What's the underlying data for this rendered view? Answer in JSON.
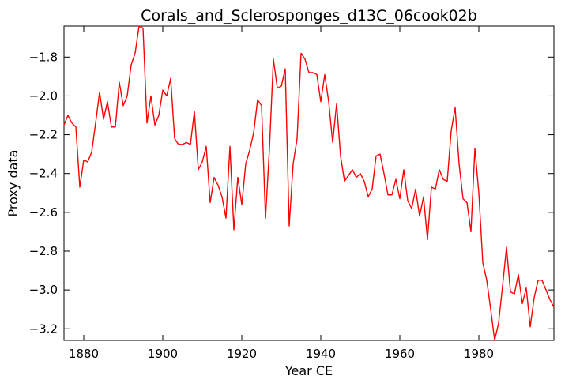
{
  "chart_data": {
    "type": "line",
    "title": "Corals_and_Sclerosponges_d13C_06cook02b",
    "xlabel": "Year CE",
    "ylabel": "Proxy data",
    "xlim": [
      1875,
      1999
    ],
    "ylim": [
      -3.26,
      -1.64
    ],
    "grid": false,
    "x_ticks": [
      {
        "value": 1880,
        "label": "1880"
      },
      {
        "value": 1900,
        "label": "1900"
      },
      {
        "value": 1920,
        "label": "1920"
      },
      {
        "value": 1940,
        "label": "1940"
      },
      {
        "value": 1960,
        "label": "1960"
      },
      {
        "value": 1980,
        "label": "1980"
      }
    ],
    "y_ticks": [
      {
        "value": -1.8,
        "label": "−1.8"
      },
      {
        "value": -2.0,
        "label": "−2.0"
      },
      {
        "value": -2.2,
        "label": "−2.2"
      },
      {
        "value": -2.4,
        "label": "−2.4"
      },
      {
        "value": -2.6,
        "label": "−2.6"
      },
      {
        "value": -2.8,
        "label": "−2.8"
      },
      {
        "value": -3.0,
        "label": "−3.0"
      },
      {
        "value": -3.2,
        "label": "−3.2"
      }
    ],
    "series": [
      {
        "color": "#ff0000",
        "x": [
          1875,
          1876,
          1877,
          1878,
          1879,
          1880,
          1881,
          1882,
          1883,
          1884,
          1885,
          1886,
          1887,
          1888,
          1889,
          1890,
          1891,
          1892,
          1893,
          1894,
          1895,
          1896,
          1897,
          1898,
          1899,
          1900,
          1901,
          1902,
          1903,
          1904,
          1905,
          1906,
          1907,
          1908,
          1909,
          1910,
          1911,
          1912,
          1913,
          1914,
          1915,
          1916,
          1917,
          1918,
          1919,
          1920,
          1921,
          1922,
          1923,
          1924,
          1925,
          1926,
          1927,
          1928,
          1929,
          1930,
          1931,
          1932,
          1933,
          1934,
          1935,
          1936,
          1937,
          1938,
          1939,
          1940,
          1941,
          1942,
          1943,
          1944,
          1945,
          1946,
          1947,
          1948,
          1949,
          1950,
          1951,
          1952,
          1953,
          1954,
          1955,
          1956,
          1957,
          1958,
          1959,
          1960,
          1961,
          1962,
          1963,
          1964,
          1965,
          1966,
          1967,
          1968,
          1969,
          1970,
          1971,
          1972,
          1973,
          1974,
          1975,
          1976,
          1977,
          1978,
          1979,
          1980,
          1981,
          1982,
          1983,
          1984,
          1985,
          1986,
          1987,
          1988,
          1989,
          1990,
          1991,
          1992,
          1993,
          1994,
          1995,
          1996,
          1997,
          1998,
          1999
        ],
        "y": [
          -2.15,
          -2.1,
          -2.14,
          -2.16,
          -2.47,
          -2.33,
          -2.34,
          -2.29,
          -2.14,
          -1.98,
          -2.12,
          -2.03,
          -2.16,
          -2.16,
          -1.93,
          -2.05,
          -2.0,
          -1.84,
          -1.78,
          -1.64,
          -1.65,
          -2.14,
          -2.0,
          -2.15,
          -2.1,
          -1.97,
          -2.0,
          -1.91,
          -2.22,
          -2.25,
          -2.25,
          -2.24,
          -2.25,
          -2.08,
          -2.38,
          -2.34,
          -2.26,
          -2.55,
          -2.42,
          -2.46,
          -2.52,
          -2.63,
          -2.26,
          -2.69,
          -2.42,
          -2.56,
          -2.35,
          -2.28,
          -2.19,
          -2.02,
          -2.05,
          -2.63,
          -2.27,
          -1.81,
          -1.96,
          -1.95,
          -1.86,
          -2.67,
          -2.35,
          -2.22,
          -1.78,
          -1.81,
          -1.88,
          -1.88,
          -1.89,
          -2.03,
          -1.89,
          -2.03,
          -2.24,
          -2.04,
          -2.31,
          -2.44,
          -2.41,
          -2.38,
          -2.42,
          -2.4,
          -2.44,
          -2.52,
          -2.48,
          -2.31,
          -2.3,
          -2.4,
          -2.51,
          -2.51,
          -2.43,
          -2.53,
          -2.38,
          -2.54,
          -2.58,
          -2.48,
          -2.62,
          -2.52,
          -2.74,
          -2.47,
          -2.48,
          -2.38,
          -2.43,
          -2.44,
          -2.18,
          -2.06,
          -2.35,
          -2.53,
          -2.55,
          -2.7,
          -2.27,
          -2.5,
          -2.86,
          -2.95,
          -3.1,
          -3.26,
          -3.17,
          -2.98,
          -2.78,
          -3.01,
          -3.02,
          -2.92,
          -3.07,
          -2.99,
          -3.19,
          -3.04,
          -2.95,
          -2.95,
          -3.0,
          -3.05,
          -3.09
        ]
      }
    ]
  }
}
